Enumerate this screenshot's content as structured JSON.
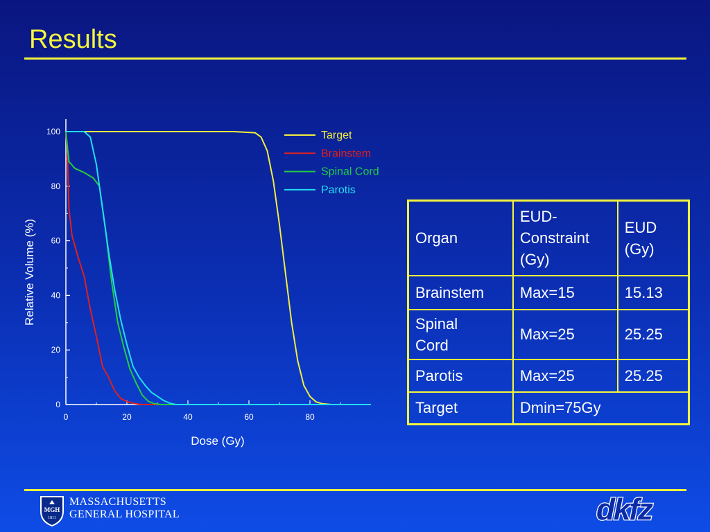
{
  "slide": {
    "title": "Results"
  },
  "colors": {
    "accent": "#f5f53c",
    "text": "#ffffff"
  },
  "chart_data": {
    "type": "line",
    "xlabel": "Dose (Gy)",
    "ylabel": "Relative Volume (%)",
    "xlim": [
      0,
      100
    ],
    "ylim": [
      0,
      100
    ],
    "x_ticks": [
      0,
      20,
      40,
      60,
      80
    ],
    "y_ticks": [
      0,
      20,
      40,
      60,
      80,
      100
    ],
    "grid": false,
    "legend_position": "top-right",
    "series": [
      {
        "name": "Target",
        "color": "#f2ee3c",
        "points": [
          [
            0,
            100
          ],
          [
            30,
            100
          ],
          [
            55,
            100
          ],
          [
            62,
            99.6
          ],
          [
            64,
            98
          ],
          [
            66,
            93
          ],
          [
            68,
            82
          ],
          [
            70,
            66
          ],
          [
            72,
            48
          ],
          [
            74,
            30
          ],
          [
            76,
            16
          ],
          [
            78,
            7
          ],
          [
            80,
            3
          ],
          [
            82,
            1
          ],
          [
            84,
            0.3
          ],
          [
            87,
            0
          ],
          [
            100,
            0
          ]
        ]
      },
      {
        "name": "Brainstem",
        "color": "#e0201c",
        "points": [
          [
            0,
            100
          ],
          [
            0.5,
            92
          ],
          [
            1,
            72
          ],
          [
            2,
            62
          ],
          [
            4,
            54
          ],
          [
            6,
            47
          ],
          [
            8,
            35
          ],
          [
            10,
            25
          ],
          [
            12,
            14
          ],
          [
            14,
            10
          ],
          [
            16,
            5
          ],
          [
            18,
            2.2
          ],
          [
            20,
            1.1
          ],
          [
            22,
            0.5
          ],
          [
            24,
            0.1
          ],
          [
            25,
            0
          ],
          [
            100,
            0
          ]
        ]
      },
      {
        "name": "Spinal Cord",
        "color": "#22cc44",
        "points": [
          [
            0,
            100
          ],
          [
            1,
            89
          ],
          [
            3,
            86.5
          ],
          [
            6,
            85
          ],
          [
            9,
            83
          ],
          [
            11,
            80
          ],
          [
            13,
            64
          ],
          [
            15,
            45
          ],
          [
            17,
            30
          ],
          [
            19,
            21
          ],
          [
            21,
            13
          ],
          [
            23,
            8
          ],
          [
            25,
            3.5
          ],
          [
            27,
            1.2
          ],
          [
            29,
            0.3
          ],
          [
            31,
            0
          ],
          [
            100,
            0
          ]
        ]
      },
      {
        "name": "Parotis",
        "color": "#22ddee",
        "points": [
          [
            0,
            100
          ],
          [
            6,
            100
          ],
          [
            8,
            98
          ],
          [
            10,
            88
          ],
          [
            12,
            72
          ],
          [
            14,
            56
          ],
          [
            16,
            42
          ],
          [
            18,
            31
          ],
          [
            20,
            22
          ],
          [
            22,
            14
          ],
          [
            24,
            10
          ],
          [
            26,
            7
          ],
          [
            28,
            4.5
          ],
          [
            30,
            3
          ],
          [
            32,
            1.5
          ],
          [
            34,
            0.5
          ],
          [
            36,
            0
          ],
          [
            100,
            0
          ]
        ]
      }
    ]
  },
  "table": {
    "header": [
      "Organ",
      "EUD-Constraint (Gy)",
      "EUD (Gy)"
    ],
    "header_lines": [
      [
        "Organ"
      ],
      [
        "EUD-",
        "Constraint",
        "(Gy)"
      ],
      [
        "EUD",
        "(Gy)"
      ]
    ],
    "rows": [
      {
        "organ": [
          "Brainstem"
        ],
        "constraint": "Max=15",
        "eud": "15.13"
      },
      {
        "organ": [
          "Spinal",
          "Cord"
        ],
        "constraint": "Max=25",
        "eud": "25.25"
      },
      {
        "organ": [
          "Parotis"
        ],
        "constraint": "Max=25",
        "eud": "25.25"
      },
      {
        "organ": [
          "Target"
        ],
        "constraint": "Dmin=75Gy",
        "eud": ""
      }
    ]
  },
  "logos": {
    "mgh": {
      "line1": "MASSACHUSETTS",
      "line2": "GENERAL HOSPITAL",
      "shield_text": "MGH",
      "shield_year": "1811",
      "icon": "mgh-shield-icon"
    },
    "dkfz": {
      "text": "dkfz",
      "icon": "dkfz-logo-icon"
    }
  }
}
